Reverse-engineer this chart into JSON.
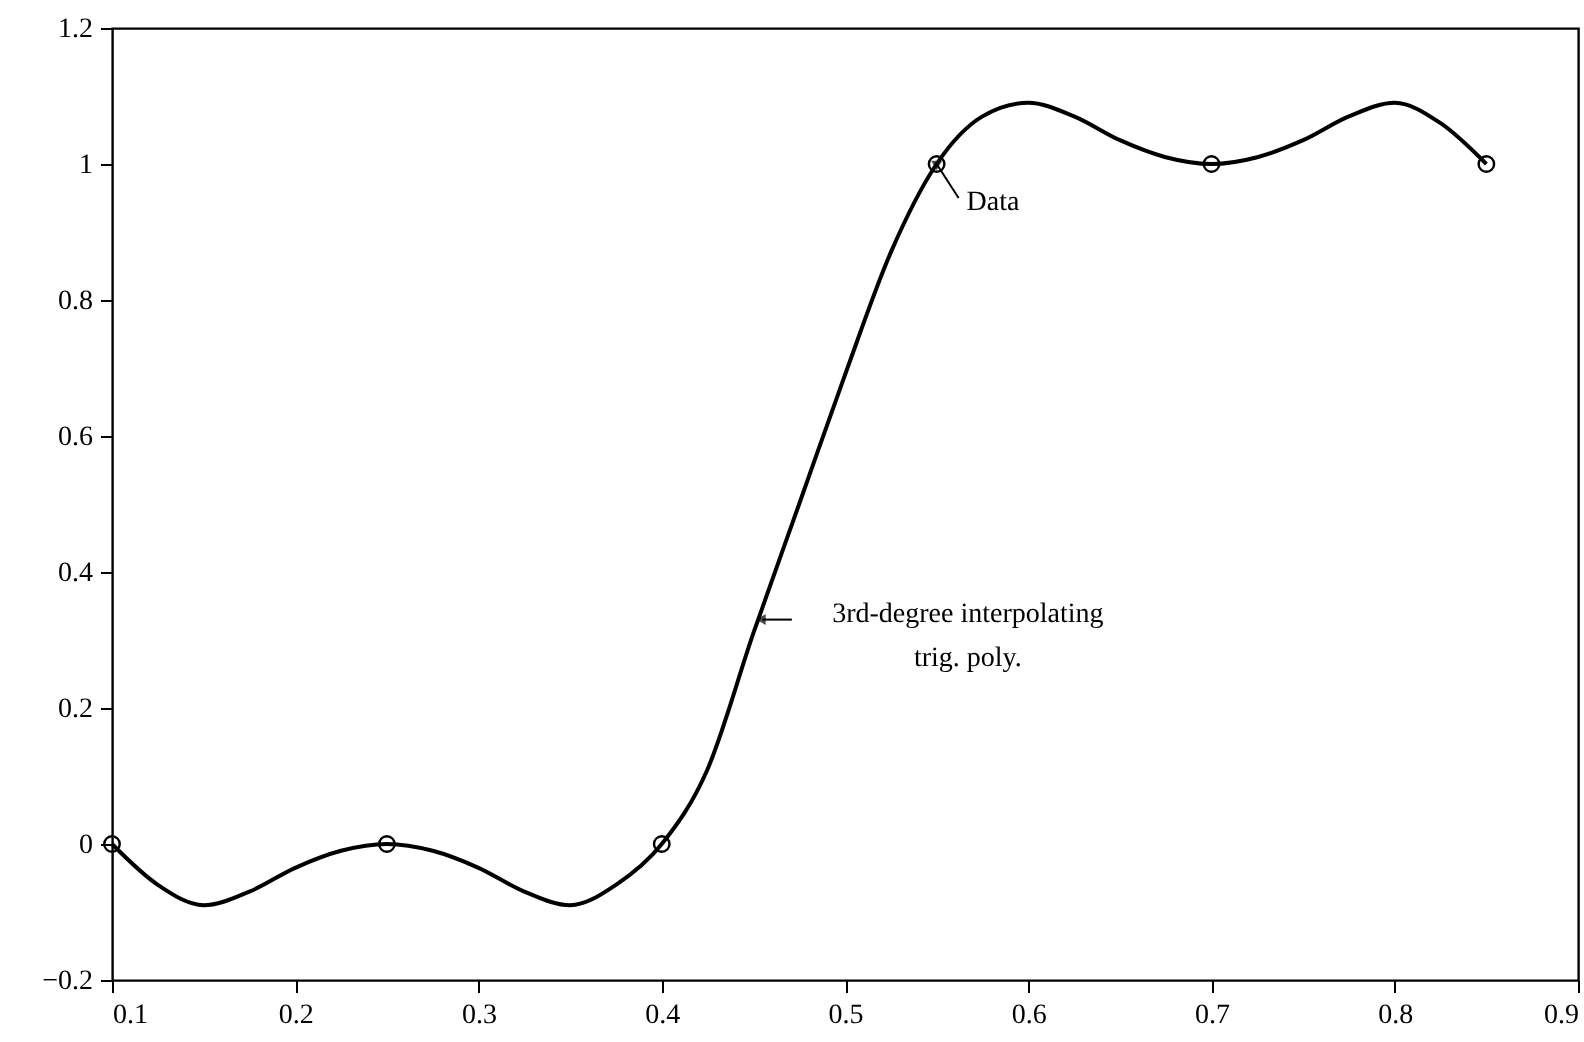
{
  "chart_data": {
    "type": "line",
    "x": [
      0.1,
      0.125,
      0.15,
      0.175,
      0.2,
      0.225,
      0.25,
      0.275,
      0.3,
      0.325,
      0.35,
      0.375,
      0.4,
      0.425,
      0.45,
      0.475,
      0.5,
      0.525,
      0.55,
      0.575,
      0.6,
      0.625,
      0.65,
      0.675,
      0.7,
      0.725,
      0.75,
      0.775,
      0.8,
      0.825,
      0.85
    ],
    "series": [
      {
        "color": "#000000",
        "marker": "none",
        "line_style": "solid",
        "values": [
          0,
          -0.06,
          -0.09,
          -0.07,
          -0.035,
          -0.01,
          0,
          -0.01,
          -0.035,
          -0.07,
          -0.09,
          -0.06,
          0,
          0.11,
          0.31,
          0.5,
          0.69,
          0.87,
          1.0,
          1.07,
          1.09,
          1.07,
          1.035,
          1.01,
          1.0,
          1.01,
          1.035,
          1.07,
          1.09,
          1.06,
          1.0
        ]
      },
      {
        "type": "scatter",
        "color": "#000000",
        "marker": "circle",
        "x": [
          0.1,
          0.25,
          0.4,
          0.55,
          0.7,
          0.85
        ],
        "values": [
          0,
          0,
          0,
          1,
          1,
          1
        ]
      }
    ],
    "annotations": [
      {
        "text": "Data",
        "x": 0.55,
        "y": 1.0
      },
      {
        "text": "3rd-degree interpolating\ntrig. poly.",
        "x": 0.455,
        "y": 0.33
      }
    ],
    "xlim": [
      0.1,
      0.9
    ],
    "xticks": [
      0.1,
      0.2,
      0.3,
      0.4,
      0.5,
      0.6,
      0.7,
      0.8,
      0.9
    ],
    "ylim": [
      -0.2,
      1.2
    ],
    "yticks": [
      {
        "value": -0.2,
        "label": "−0.2"
      },
      0,
      0.2,
      0.4,
      0.6,
      0.8,
      1,
      1.2
    ],
    "grid": false
  }
}
